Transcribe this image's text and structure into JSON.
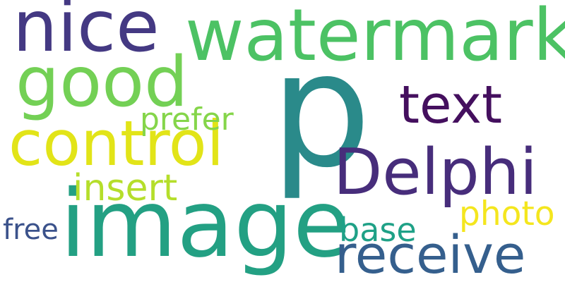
{
  "word_cloud": {
    "background": "#ffffff",
    "words": [
      {
        "id": "p",
        "text": "p",
        "color": "#2a8a8a"
      },
      {
        "id": "image",
        "text": "image",
        "color": "#23a083"
      },
      {
        "id": "watermark",
        "text": "watermark",
        "color": "#4cc264"
      },
      {
        "id": "nice",
        "text": "nice",
        "color": "#443983"
      },
      {
        "id": "good",
        "text": "good",
        "color": "#73d055"
      },
      {
        "id": "control",
        "text": "control",
        "color": "#e2e418"
      },
      {
        "id": "delphi",
        "text": "Delphi",
        "color": "#472d7b"
      },
      {
        "id": "text",
        "text": "text",
        "color": "#440f5e"
      },
      {
        "id": "receive",
        "text": "receive",
        "color": "#355f8d"
      },
      {
        "id": "insert",
        "text": "insert",
        "color": "#b5de2b"
      },
      {
        "id": "base",
        "text": "base",
        "color": "#1fa187"
      },
      {
        "id": "prefer",
        "text": "prefer",
        "color": "#85d54a"
      },
      {
        "id": "photo",
        "text": "photo",
        "color": "#f4e61e"
      },
      {
        "id": "free",
        "text": "free",
        "color": "#3b528b"
      }
    ]
  }
}
